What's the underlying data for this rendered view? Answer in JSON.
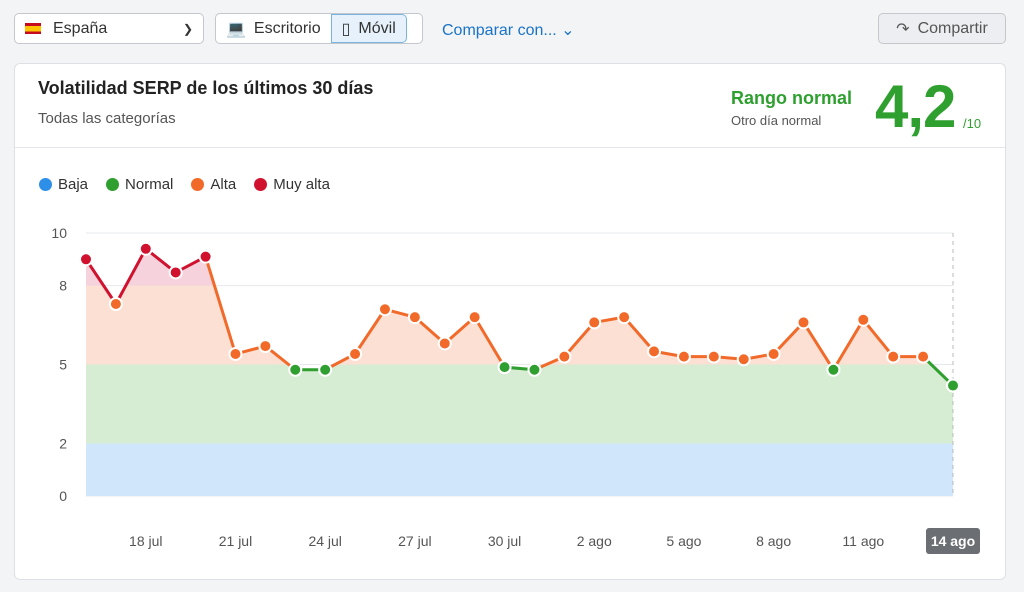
{
  "toolbar": {
    "country": "España",
    "desktop": "Escritorio",
    "mobile": "Móvil",
    "compare": "Comparar con...",
    "share": "Compartir"
  },
  "card": {
    "title": "Volatilidad SERP de los últimos 30 días",
    "subtitle": "Todas las categorías",
    "range_label": "Rango normal",
    "range_sub": "Otro día normal",
    "score": "4,2",
    "score_max": "/10"
  },
  "legend": [
    {
      "label": "Baja",
      "color": "#2e8fe8"
    },
    {
      "label": "Normal",
      "color": "#2fa02f"
    },
    {
      "label": "Alta",
      "color": "#f26a2a"
    },
    {
      "label": "Muy alta",
      "color": "#d0122f"
    }
  ],
  "chart_data": {
    "type": "line",
    "title": "Volatilidad SERP de los últimos 30 días",
    "ylim": [
      0,
      10
    ],
    "yticks": [
      "0",
      "2",
      "5",
      "8",
      "10"
    ],
    "bands": [
      {
        "from": 0,
        "to": 2,
        "color": "#cfe6fb"
      },
      {
        "from": 2,
        "to": 5,
        "color": "#d6edd4"
      },
      {
        "from": 5,
        "to": 8,
        "color": "#fde0d4"
      },
      {
        "from": 8,
        "to": 10,
        "color": "#f6d3dc"
      }
    ],
    "xlabels": [
      {
        "i": 2,
        "label": "18 jul"
      },
      {
        "i": 5,
        "label": "21 jul"
      },
      {
        "i": 8,
        "label": "24 jul"
      },
      {
        "i": 11,
        "label": "27 jul"
      },
      {
        "i": 14,
        "label": "30 jul"
      },
      {
        "i": 17,
        "label": "2 ago"
      },
      {
        "i": 20,
        "label": "5 ago"
      },
      {
        "i": 23,
        "label": "8 ago"
      },
      {
        "i": 26,
        "label": "11 ago"
      },
      {
        "i": 29,
        "label": "14 ago"
      }
    ],
    "values": [
      9.0,
      7.3,
      9.4,
      8.5,
      9.1,
      5.4,
      5.7,
      4.8,
      4.8,
      5.4,
      7.1,
      6.8,
      5.8,
      6.8,
      4.9,
      4.8,
      5.3,
      6.6,
      6.8,
      5.5,
      5.3,
      5.3,
      5.2,
      5.4,
      6.6,
      4.8,
      6.7,
      5.3,
      5.3,
      4.2
    ]
  }
}
